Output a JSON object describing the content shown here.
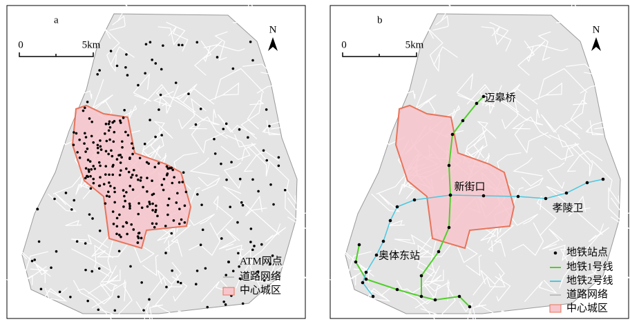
{
  "panels": [
    {
      "label": "a",
      "scale_bar": {
        "start": "0",
        "end": "5km"
      },
      "north": "N",
      "legend": [
        "ATM网点",
        "道路网络",
        "中心城区"
      ]
    },
    {
      "label": "b",
      "scale_bar": {
        "start": "0",
        "end": "5km"
      },
      "north": "N",
      "station_labels": [
        "迈皋桥",
        "新街口",
        "孝陵卫",
        "奥体东站"
      ],
      "legend": [
        "地铁站点",
        "地铁1号线",
        "地铁2号线",
        "道路网络",
        "中心城区"
      ]
    }
  ]
}
